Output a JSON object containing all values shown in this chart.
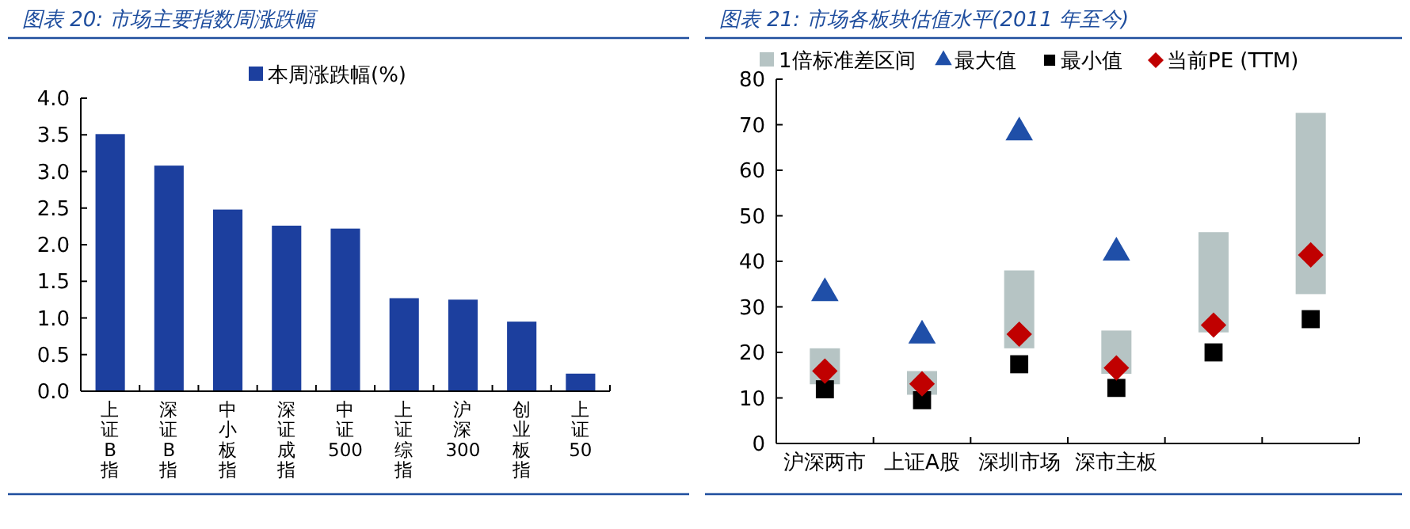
{
  "chart_data": [
    {
      "type": "bar",
      "title": "图表 20:  市场主要指数周涨跌幅",
      "categories": [
        "上证B指",
        "深证B指",
        "中小板指",
        "深证成指",
        "中证500",
        "上证综指",
        "沪深300",
        "创业板指",
        "上证50"
      ],
      "series": [
        {
          "name": "本周涨跌幅(%)",
          "color": "#1c3f9e",
          "values": [
            3.51,
            3.08,
            2.48,
            2.26,
            2.22,
            1.27,
            1.25,
            0.95,
            0.24
          ]
        }
      ],
      "ylim": [
        0,
        4
      ],
      "yticks": [
        {
          "value": 0,
          "label": "0.0"
        },
        {
          "value": 0.5,
          "label": "0.5"
        },
        {
          "value": 1,
          "label": "1.0"
        },
        {
          "value": 1.5,
          "label": "1.5"
        },
        {
          "value": 2,
          "label": "2.0"
        },
        {
          "value": 2.5,
          "label": "2.5"
        },
        {
          "value": 3,
          "label": "3.0"
        },
        {
          "value": 3.5,
          "label": "3.5"
        },
        {
          "value": 4,
          "label": "4.0"
        }
      ],
      "legend": "top",
      "grid": false
    },
    {
      "type": "bar",
      "title": "图表 21:  市场各板块估值水平(2011 年至今)",
      "categories": [
        "沪深两市",
        "上证A股",
        "深圳市场",
        "深市主板",
        null,
        null
      ],
      "series": [
        {
          "name": "1倍标准差区间",
          "color": "#b6c4c4",
          "base": [
            13.0,
            10.7,
            20.9,
            15.3,
            24.4,
            32.8
          ],
          "values": [
            7.9,
            5.2,
            17.1,
            9.5,
            22.0,
            39.8
          ]
        },
        {
          "type": "scatter",
          "name": "最大值",
          "color": "#1f4fa8",
          "marker": "triangle",
          "values": [
            33,
            23.7,
            68.3,
            41.9,
            null,
            null
          ]
        },
        {
          "type": "scatter",
          "name": "最小值",
          "color": "#000000",
          "marker": "square",
          "values": [
            11.9,
            9.5,
            17.4,
            12.2,
            20.0,
            27.3
          ]
        },
        {
          "type": "scatter",
          "name": "当前PE (TTM)",
          "color": "#c00000",
          "marker": "diamond",
          "values": [
            15.9,
            13.1,
            24.0,
            16.6,
            26.0,
            41.4
          ]
        }
      ],
      "ylim": [
        0,
        80
      ],
      "yticks": [
        0,
        10,
        20,
        30,
        40,
        50,
        60,
        70,
        80
      ],
      "legend": "top",
      "grid": false
    }
  ]
}
